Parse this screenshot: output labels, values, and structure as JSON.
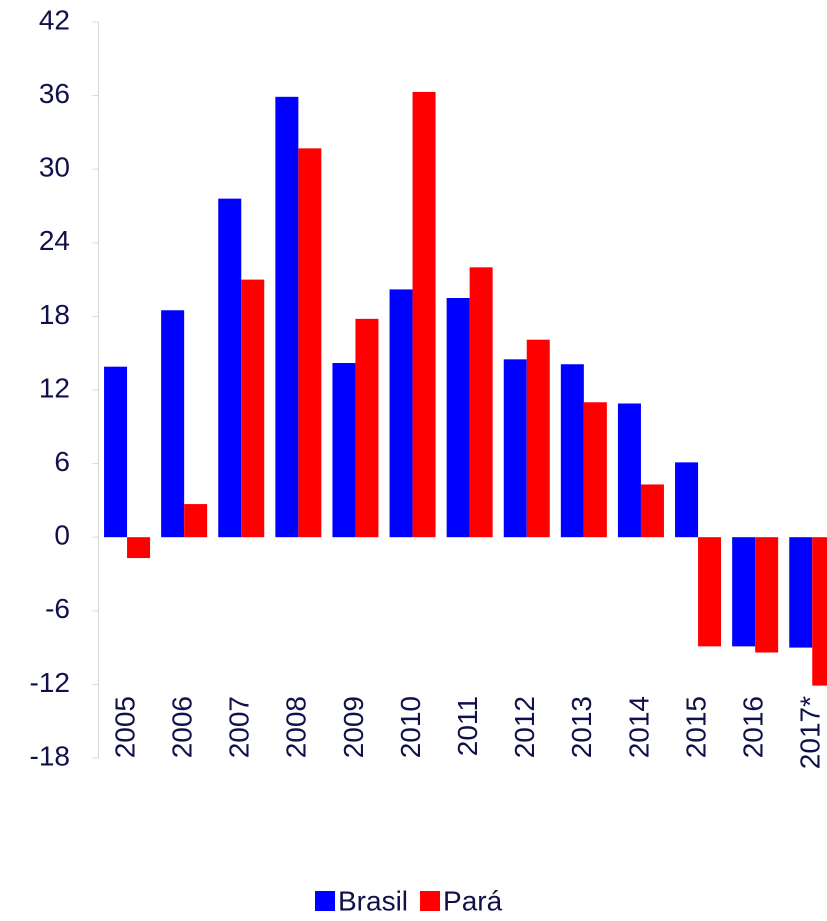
{
  "chart_data": {
    "type": "bar",
    "categories": [
      "2005",
      "2006",
      "2007",
      "2008",
      "2009",
      "2010",
      "2011",
      "2012",
      "2013",
      "2014",
      "2015",
      "2016",
      "2017*"
    ],
    "series": [
      {
        "name": "Brasil",
        "color": "#0000ff",
        "values": [
          13.9,
          18.5,
          27.6,
          35.9,
          14.2,
          20.2,
          19.5,
          14.5,
          14.1,
          10.9,
          6.1,
          -8.9,
          -9.0
        ]
      },
      {
        "name": "Pará",
        "color": "#ff0000",
        "values": [
          -1.7,
          2.7,
          21.0,
          31.7,
          17.8,
          36.3,
          22.0,
          16.1,
          11.0,
          4.3,
          -8.9,
          -9.4,
          -12.1
        ]
      }
    ],
    "ylim": [
      -18,
      42
    ],
    "yticks": [
      -18,
      -12,
      -6,
      0,
      6,
      12,
      18,
      24,
      30,
      36,
      42
    ],
    "grid": false,
    "legend": "bottom"
  }
}
